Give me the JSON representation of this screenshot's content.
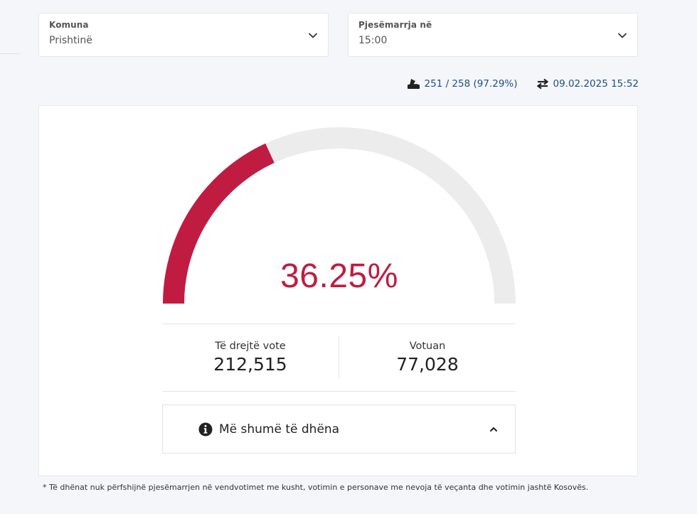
{
  "filters": {
    "komuna": {
      "label": "Komuna",
      "value": "Prishtinë"
    },
    "pjesemarrja": {
      "label": "Pjesëmarrja në",
      "value": "15:00"
    }
  },
  "meta": {
    "stations": "251 / 258 (97.29%)",
    "updated": "09.02.2025 15:52"
  },
  "gauge": {
    "percent_label": "36.25%",
    "percent": 36.25,
    "fill_color": "#c01c42",
    "track_color": "#ececec"
  },
  "stats": {
    "eligible": {
      "label": "Të drejtë vote",
      "value": "212,515"
    },
    "voted": {
      "label": "Votuan",
      "value": "77,028"
    }
  },
  "more": {
    "label": "Më shumë të dhëna"
  },
  "footnote": "* Të dhënat nuk përfshijnë pjesëmarrjen në vendvotimet me kusht, votimin e personave me nevoja të veçanta dhe votimin jashtë Kosovës."
}
